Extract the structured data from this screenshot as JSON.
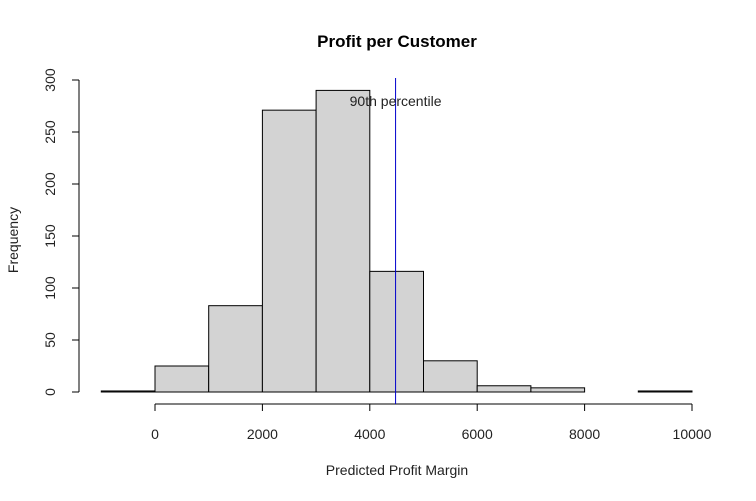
{
  "chart_data": {
    "type": "bar",
    "title": "Profit per Customer",
    "xlabel": "Predicted Profit Margin",
    "ylabel": "Frequency",
    "bins": [
      {
        "from": -1000,
        "to": 0,
        "count": 1
      },
      {
        "from": 0,
        "to": 1000,
        "count": 25
      },
      {
        "from": 1000,
        "to": 2000,
        "count": 83
      },
      {
        "from": 2000,
        "to": 3000,
        "count": 271
      },
      {
        "from": 3000,
        "to": 4000,
        "count": 290
      },
      {
        "from": 4000,
        "to": 5000,
        "count": 116
      },
      {
        "from": 5000,
        "to": 6000,
        "count": 30
      },
      {
        "from": 6000,
        "to": 7000,
        "count": 6
      },
      {
        "from": 7000,
        "to": 8000,
        "count": 4
      },
      {
        "from": 8000,
        "to": 9000,
        "count": 0
      },
      {
        "from": 9000,
        "to": 10000,
        "count": 1
      }
    ],
    "xlim": [
      -1000,
      10000
    ],
    "ylim": [
      0,
      300
    ],
    "xticks": [
      0,
      2000,
      4000,
      6000,
      8000,
      10000
    ],
    "yticks": [
      0,
      50,
      100,
      150,
      200,
      250,
      300
    ],
    "vline": {
      "x": 4480,
      "label": "90th percentile",
      "color": "#0000cc"
    },
    "bar_color": "#d3d3d3",
    "grid": false,
    "legend": "none"
  }
}
